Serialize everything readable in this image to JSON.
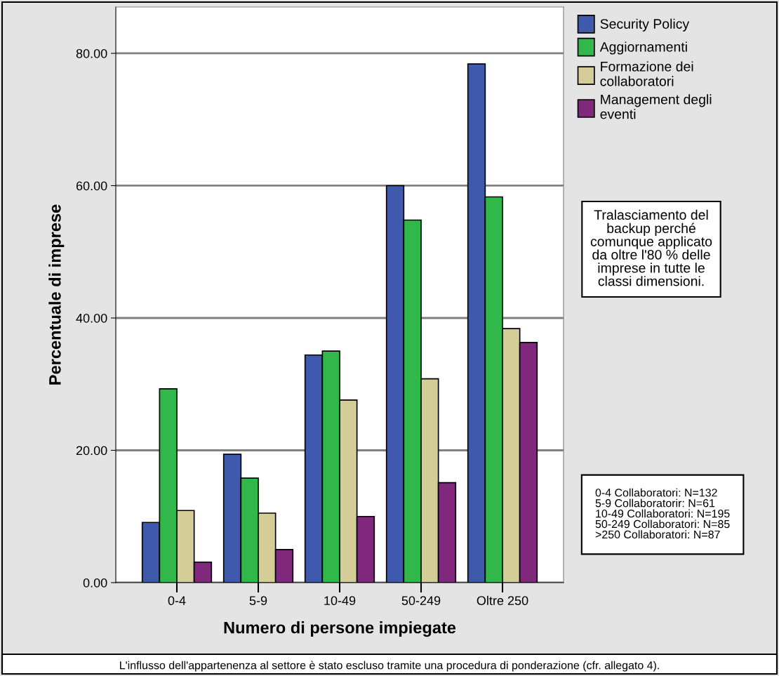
{
  "chart_data": {
    "type": "bar",
    "xlabel": "Numero di persone impiegate",
    "ylabel": "Percentuale di imprese",
    "categories": [
      "0-4",
      "5-9",
      "10-49",
      "50-249",
      "Oltre 250"
    ],
    "series": [
      {
        "name": "Security Policy",
        "color": "#3f59ad",
        "values": [
          9.1,
          19.4,
          34.4,
          60.0,
          78.4
        ]
      },
      {
        "name": "Aggiornamenti",
        "color": "#31b74a",
        "values": [
          29.3,
          15.8,
          35.0,
          54.8,
          58.3
        ]
      },
      {
        "name": "Formazione dei\ncollaboratori",
        "color": "#d4cd97",
        "values": [
          10.9,
          10.5,
          27.6,
          30.8,
          38.4
        ]
      },
      {
        "name": "Management degli\neventi",
        "color": "#80287c",
        "values": [
          3.1,
          5.0,
          10.0,
          15.1,
          36.3
        ]
      }
    ],
    "ylim": [
      0,
      87
    ],
    "yticks": [
      {
        "value": 0,
        "label": "0.00"
      },
      {
        "value": 20,
        "label": "20.00"
      },
      {
        "value": 40,
        "label": "40.00"
      },
      {
        "value": 60,
        "label": "60.00"
      },
      {
        "value": 80,
        "label": "80.00"
      }
    ],
    "grid": "y",
    "legend": "right",
    "annotations": [
      "Tralasciamento del\nbackup perché\ncomunque applicato\nda oltre l'80 % delle\nimprese in tutte le\nclassi dimensioni.",
      "0-4 Collaboratori: N=132\n5-9 Collaboratorir: N=61\n10-49 Collaboratori: N=195\n50-249 Collaboratori: N=85\n>250 Collaboratori: N=87",
      "L'influsso dell'appartenenza al settore è stato escluso tramite una procedura di ponderazione (cfr. allegato 4)."
    ]
  }
}
